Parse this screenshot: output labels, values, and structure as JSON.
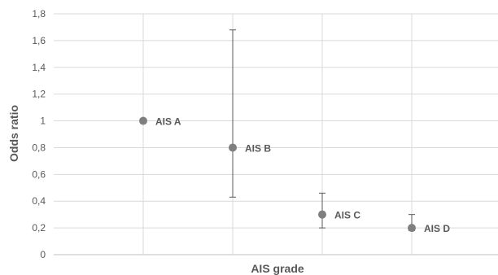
{
  "chart_data": {
    "type": "scatter",
    "xlabel": "AIS grade",
    "ylabel": "Odds ratio",
    "ylim": [
      0,
      1.8
    ],
    "y_ticks": [
      "0",
      "0,2",
      "0,4",
      "0,6",
      "0,8",
      "1",
      "1,2",
      "1,4",
      "1,6",
      "1,8"
    ],
    "grid": "vertical and horizontal",
    "colors": {
      "marker": "#7f7f7f",
      "grid": "#d9d9d9",
      "text": "#595959"
    },
    "points": [
      {
        "category": "AIS A",
        "label": "AIS A",
        "value": 1.0,
        "lower": 1.0,
        "upper": 1.0
      },
      {
        "category": "AIS B",
        "label": "AIS B",
        "value": 0.8,
        "lower": 0.43,
        "upper": 1.68
      },
      {
        "category": "AIS C",
        "label": "AIS C",
        "value": 0.3,
        "lower": 0.2,
        "upper": 0.46
      },
      {
        "category": "AIS D",
        "label": "AIS D",
        "value": 0.2,
        "lower": 0.18,
        "upper": 0.3
      }
    ]
  }
}
